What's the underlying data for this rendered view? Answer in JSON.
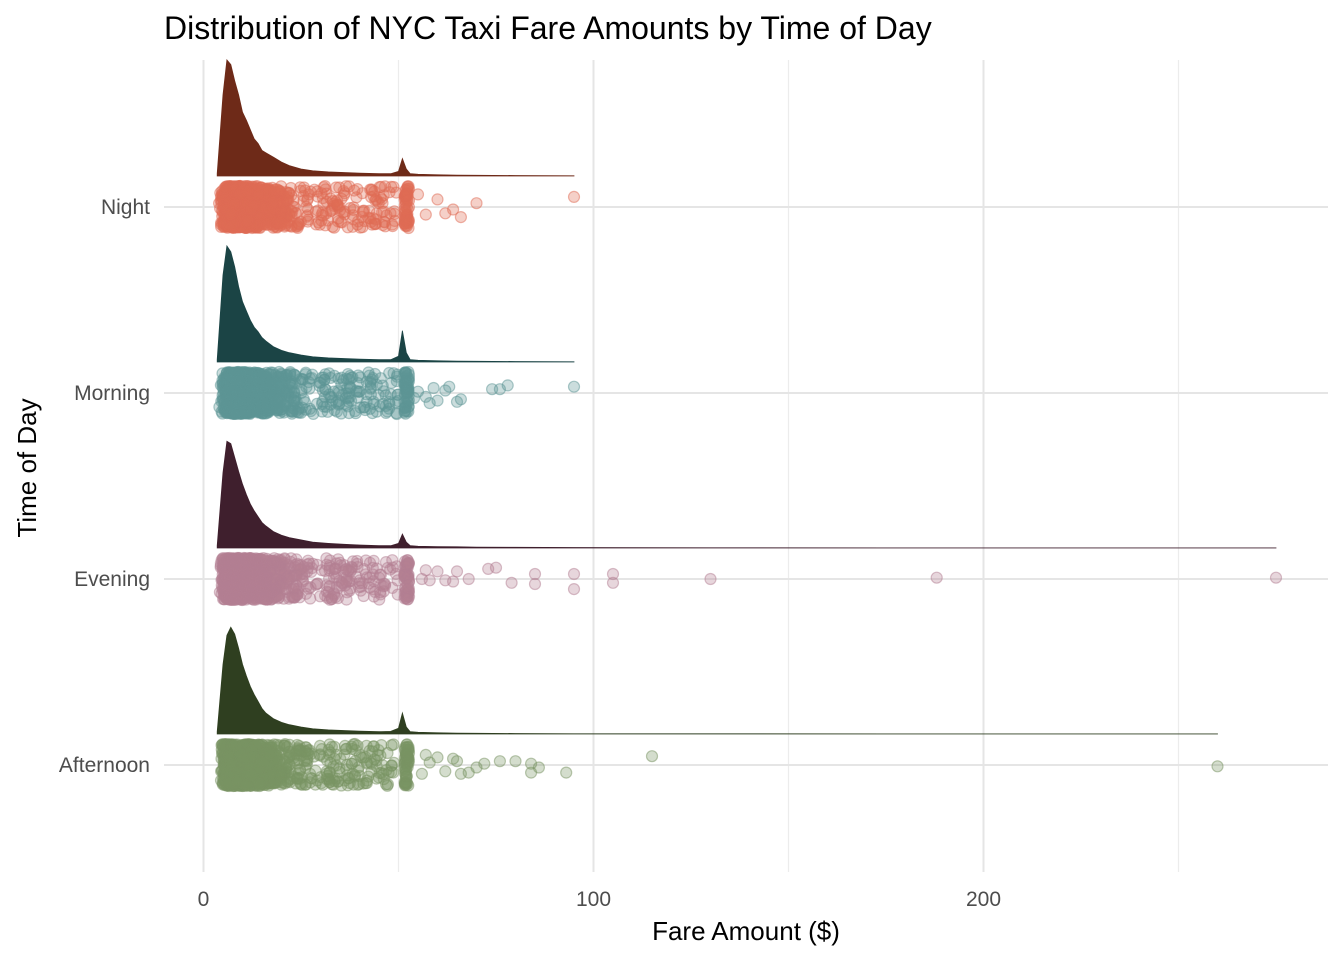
{
  "chart_data": {
    "type": "raincloud",
    "title": "Distribution of NYC Taxi Fare Amounts by Time of Day",
    "xlabel": "Fare Amount ($)",
    "ylabel": "Time of Day",
    "xlim": [
      -2,
      289
    ],
    "x_ticks": [
      0,
      100,
      200
    ],
    "x_tick_labels": [
      "0",
      "100",
      "200"
    ],
    "x_minor_ticks": [
      50,
      150,
      250
    ],
    "grid": true,
    "legend": "none",
    "categories": [
      "Night",
      "Morning",
      "Evening",
      "Afternoon"
    ],
    "series": [
      {
        "name": "Night",
        "density_color": "#6e2a18",
        "point_color": "#e06c55",
        "density": {
          "x": [
            3.5,
            5,
            6,
            7,
            8,
            9,
            10,
            11,
            12,
            13,
            14,
            15,
            16,
            18,
            20,
            22,
            25,
            28,
            32,
            36,
            40,
            45,
            48,
            50,
            51,
            52,
            53,
            55,
            60,
            65,
            70,
            80,
            95
          ],
          "y": [
            0.02,
            0.7,
            1.0,
            0.96,
            0.82,
            0.7,
            0.55,
            0.48,
            0.4,
            0.32,
            0.28,
            0.22,
            0.2,
            0.16,
            0.12,
            0.09,
            0.06,
            0.045,
            0.035,
            0.03,
            0.025,
            0.02,
            0.02,
            0.04,
            0.15,
            0.06,
            0.02,
            0.015,
            0.01,
            0.008,
            0.006,
            0.004,
            0.002
          ]
        },
        "max_fare": 95,
        "outliers": [
          [
            66,
            0.8
          ],
          [
            62,
            0.5
          ],
          [
            64,
            0.2
          ],
          [
            70,
            -0.3
          ],
          [
            95,
            -0.8
          ],
          [
            60,
            -0.6
          ],
          [
            55,
            -1.0
          ],
          [
            57,
            0.6
          ],
          [
            52,
            -0.4
          ]
        ]
      },
      {
        "name": "Morning",
        "density_color": "#1b4445",
        "point_color": "#5e9696",
        "density": {
          "x": [
            3.5,
            5,
            6,
            7,
            8,
            9,
            10,
            11,
            12,
            13,
            14,
            15,
            16,
            18,
            20,
            22,
            25,
            28,
            32,
            36,
            40,
            45,
            48,
            50,
            51,
            52,
            53,
            55,
            60,
            65,
            70,
            80,
            95
          ],
          "y": [
            0.02,
            0.75,
            1.0,
            0.95,
            0.82,
            0.65,
            0.52,
            0.44,
            0.36,
            0.3,
            0.26,
            0.21,
            0.18,
            0.13,
            0.1,
            0.08,
            0.06,
            0.045,
            0.035,
            0.03,
            0.025,
            0.02,
            0.02,
            0.05,
            0.27,
            0.08,
            0.02,
            0.015,
            0.01,
            0.008,
            0.006,
            0.004,
            0.002
          ]
        },
        "max_fare": 95,
        "outliers": [
          [
            58,
            0.8
          ],
          [
            60,
            0.6
          ],
          [
            65,
            0.7
          ],
          [
            66,
            0.5
          ],
          [
            62,
            -0.2
          ],
          [
            63,
            -0.5
          ],
          [
            59,
            -0.4
          ],
          [
            57,
            0.3
          ],
          [
            74,
            -0.3
          ],
          [
            76,
            -0.3
          ],
          [
            78,
            -0.6
          ],
          [
            95,
            -0.5
          ],
          [
            55,
            -0.1
          ],
          [
            54,
            0.4
          ]
        ]
      },
      {
        "name": "Evening",
        "density_color": "#3f1f2d",
        "point_color": "#b37f93",
        "density": {
          "x": [
            3.5,
            5,
            6,
            7,
            8,
            9,
            10,
            11,
            12,
            13,
            14,
            15,
            16,
            18,
            20,
            22,
            25,
            28,
            32,
            36,
            40,
            45,
            48,
            50,
            51,
            52,
            53,
            55,
            60,
            65,
            70,
            80,
            95,
            110,
            130,
            190,
            275
          ],
          "y": [
            0.02,
            0.65,
            0.92,
            0.9,
            0.78,
            0.66,
            0.55,
            0.46,
            0.38,
            0.32,
            0.27,
            0.22,
            0.19,
            0.14,
            0.11,
            0.09,
            0.07,
            0.05,
            0.04,
            0.032,
            0.026,
            0.02,
            0.02,
            0.04,
            0.12,
            0.05,
            0.02,
            0.015,
            0.012,
            0.01,
            0.008,
            0.006,
            0.004,
            0.003,
            0.002,
            0.001,
            0.001
          ]
        },
        "max_fare": 275,
        "outliers": [
          [
            56,
            0.0
          ],
          [
            58,
            0.1
          ],
          [
            60,
            -0.6
          ],
          [
            62,
            0.1
          ],
          [
            64,
            0.2
          ],
          [
            57,
            -0.7
          ],
          [
            65,
            -0.6
          ],
          [
            68,
            0.0
          ],
          [
            73,
            -0.8
          ],
          [
            75,
            -0.9
          ],
          [
            79,
            0.3
          ],
          [
            85,
            0.4
          ],
          [
            85,
            -0.4
          ],
          [
            95,
            0.8
          ],
          [
            95,
            -0.4
          ],
          [
            105,
            0.3
          ],
          [
            105,
            -0.4
          ],
          [
            130,
            0.0
          ],
          [
            188,
            -0.1
          ],
          [
            275,
            -0.1
          ]
        ]
      },
      {
        "name": "Afternoon",
        "density_color": "#2f3f20",
        "point_color": "#7a9464",
        "density": {
          "x": [
            3.5,
            5,
            6,
            7,
            8,
            9,
            10,
            11,
            12,
            13,
            14,
            15,
            16,
            18,
            20,
            22,
            25,
            28,
            32,
            36,
            40,
            45,
            48,
            50,
            51,
            52,
            53,
            55,
            60,
            65,
            70,
            80,
            95,
            115,
            260
          ],
          "y": [
            0.02,
            0.6,
            0.85,
            0.92,
            0.86,
            0.74,
            0.6,
            0.5,
            0.41,
            0.34,
            0.28,
            0.22,
            0.18,
            0.13,
            0.1,
            0.08,
            0.06,
            0.045,
            0.035,
            0.03,
            0.025,
            0.02,
            0.022,
            0.05,
            0.18,
            0.06,
            0.02,
            0.015,
            0.01,
            0.008,
            0.006,
            0.004,
            0.002,
            0.002,
            0.001
          ]
        },
        "max_fare": 260,
        "outliers": [
          [
            56,
            0.7
          ],
          [
            58,
            -0.2
          ],
          [
            60,
            -0.6
          ],
          [
            62,
            0.5
          ],
          [
            64,
            -0.5
          ],
          [
            66,
            0.7
          ],
          [
            68,
            0.6
          ],
          [
            70,
            0.2
          ],
          [
            72,
            -0.1
          ],
          [
            76,
            -0.3
          ],
          [
            80,
            -0.3
          ],
          [
            84,
            0.6
          ],
          [
            84,
            -0.1
          ],
          [
            86,
            0.2
          ],
          [
            93,
            0.6
          ],
          [
            115,
            -0.7
          ],
          [
            260,
            0.1
          ],
          [
            57,
            -0.8
          ],
          [
            65,
            -0.3
          ]
        ]
      }
    ]
  }
}
